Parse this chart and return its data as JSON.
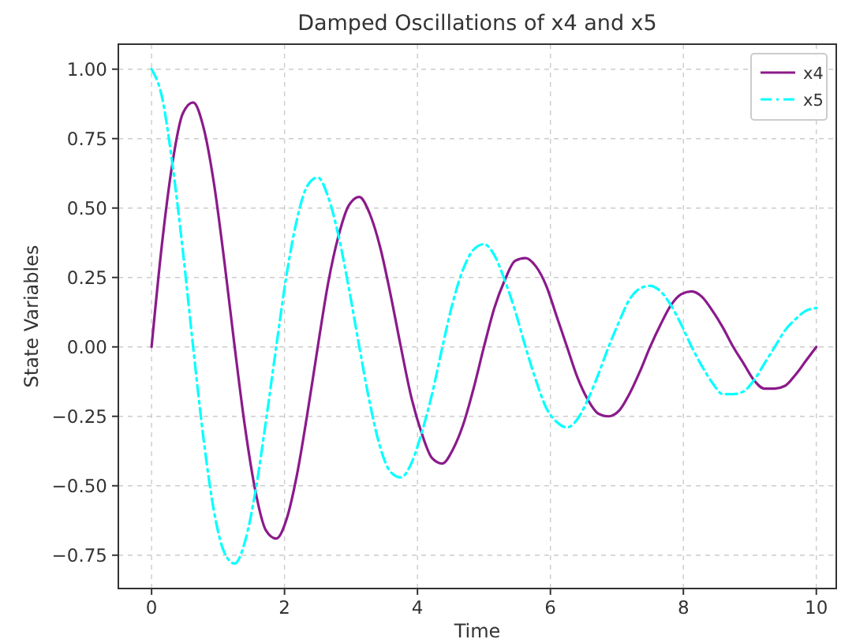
{
  "chart_data": {
    "type": "line",
    "title": "Damped Oscillations of x4 and x5",
    "xlabel": "Time",
    "ylabel": "State Variables",
    "x": [
      0,
      0.15625,
      0.3125,
      0.46875,
      0.625,
      0.78125,
      0.9375,
      1.09375,
      1.25,
      1.40625,
      1.5625,
      1.71875,
      1.875,
      2.03125,
      2.1875,
      2.34375,
      2.5,
      2.65625,
      2.8125,
      2.96875,
      3.125,
      3.28125,
      3.4375,
      3.59375,
      3.75,
      3.90625,
      4.0625,
      4.21875,
      4.375,
      4.53125,
      4.6875,
      4.84375,
      5,
      5.15625,
      5.3125,
      5.46875,
      5.625,
      5.78125,
      5.9375,
      6.09375,
      6.25,
      6.40625,
      6.5625,
      6.71875,
      6.875,
      7.03125,
      7.1875,
      7.34375,
      7.5,
      7.65625,
      7.8125,
      7.96875,
      8.125,
      8.28125,
      8.4375,
      8.59375,
      8.75,
      8.90625,
      9.0625,
      9.21875,
      9.375,
      9.53125,
      9.6875,
      9.84375,
      10
    ],
    "series": [
      {
        "name": "x4",
        "color": "#8b1a8b",
        "line_style": "solid",
        "values": [
          0,
          0.37,
          0.66,
          0.84,
          0.88,
          0.79,
          0.59,
          0.31,
          0,
          -0.29,
          -0.52,
          -0.66,
          -0.69,
          -0.62,
          -0.46,
          -0.24,
          0,
          0.23,
          0.4,
          0.51,
          0.54,
          0.48,
          0.36,
          0.19,
          0,
          -0.18,
          -0.31,
          -0.4,
          -0.42,
          -0.37,
          -0.28,
          -0.15,
          0,
          0.14,
          0.24,
          0.31,
          0.32,
          0.29,
          0.22,
          0.11,
          0,
          -0.11,
          -0.19,
          -0.24,
          -0.25,
          -0.23,
          -0.17,
          -0.09,
          0,
          0.08,
          0.15,
          0.19,
          0.2,
          0.18,
          0.13,
          0.07,
          0,
          -0.06,
          -0.12,
          -0.15,
          -0.15,
          -0.14,
          -0.1,
          -0.05,
          0
        ]
      },
      {
        "name": "x5",
        "color": "#00ffff",
        "line_style": "dashdot",
        "values": [
          1,
          0.9,
          0.66,
          0.35,
          0,
          -0.33,
          -0.59,
          -0.74,
          -0.78,
          -0.7,
          -0.52,
          -0.27,
          0,
          0.26,
          0.46,
          0.58,
          0.61,
          0.54,
          0.4,
          0.21,
          0,
          -0.2,
          -0.36,
          -0.45,
          -0.47,
          -0.42,
          -0.31,
          -0.17,
          0,
          0.16,
          0.28,
          0.35,
          0.37,
          0.33,
          0.24,
          0.13,
          0,
          -0.12,
          -0.22,
          -0.27,
          -0.29,
          -0.26,
          -0.19,
          -0.1,
          0,
          0.09,
          0.17,
          0.21,
          0.22,
          0.2,
          0.15,
          0.08,
          0,
          -0.07,
          -0.13,
          -0.17,
          -0.17,
          -0.16,
          -0.12,
          -0.06,
          0,
          0.06,
          0.1,
          0.13,
          0.14
        ]
      }
    ],
    "xlim": [
      -0.5,
      10.3
    ],
    "xticks": [
      0,
      2,
      4,
      6,
      8,
      10
    ],
    "ylim": [
      -0.87,
      1.09
    ],
    "yticks": [
      {
        "value": -0.75,
        "label": "−0.75"
      },
      {
        "value": -0.5,
        "label": "−0.50"
      },
      {
        "value": -0.25,
        "label": "−0.25"
      },
      {
        "value": 0,
        "label": "0.00"
      },
      {
        "value": 0.25,
        "label": "0.25"
      },
      {
        "value": 0.5,
        "label": "0.50"
      },
      {
        "value": 0.75,
        "label": "0.75"
      },
      {
        "value": 1,
        "label": "1.00"
      }
    ],
    "grid": true,
    "legend": "top right",
    "marker": "none"
  }
}
